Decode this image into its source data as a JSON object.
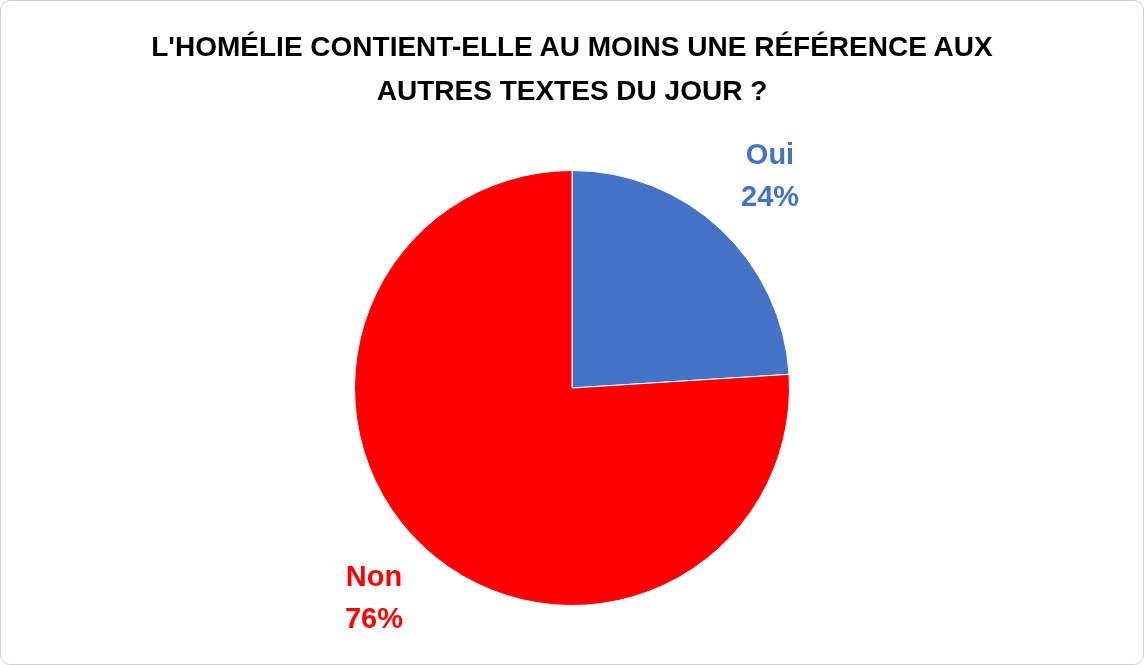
{
  "chart_data": {
    "type": "pie",
    "title": "L'HOMÉLIE CONTIENT-ELLE AU MOINS UNE RÉFÉRENCE AUX AUTRES TEXTES DU JOUR ?",
    "categories": [
      "Oui",
      "Non"
    ],
    "values": [
      24,
      76
    ],
    "value_labels": [
      "24%",
      "76%"
    ],
    "colors": [
      "#4472c4",
      "#ff0000"
    ],
    "legend": false
  }
}
